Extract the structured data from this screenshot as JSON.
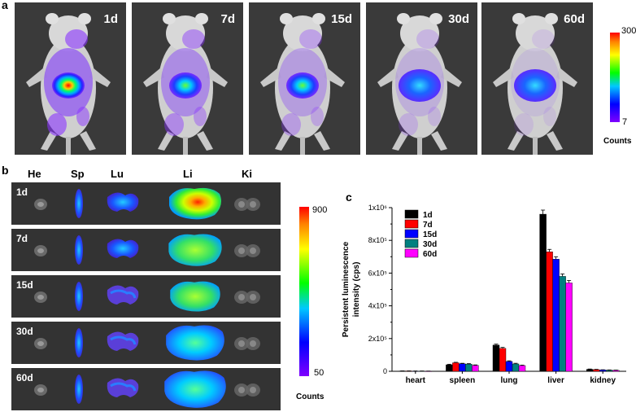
{
  "panel_a": {
    "label": "a",
    "days": [
      "1d",
      "7d",
      "15d",
      "30d",
      "60d"
    ],
    "colorbar": {
      "max": "300",
      "min": "7",
      "unit": "Counts"
    }
  },
  "panel_b": {
    "label": "b",
    "organs": [
      "He",
      "Sp",
      "Lu",
      "Li",
      "Ki"
    ],
    "days": [
      "1d",
      "7d",
      "15d",
      "30d",
      "60d"
    ],
    "colorbar": {
      "max": "900",
      "min": "50",
      "unit": "Counts"
    }
  },
  "panel_c": {
    "label": "c"
  },
  "chart_data": {
    "type": "bar",
    "categories": [
      "heart",
      "spleen",
      "lung",
      "liver",
      "kidney"
    ],
    "ylabel_line1": "Persistent luminescence",
    "ylabel_line2": "intensity (cps)",
    "xlabel": "",
    "ylim": [
      0,
      1000000
    ],
    "yticks": [
      0,
      200000,
      400000,
      600000,
      800000,
      1000000
    ],
    "ytick_labels": [
      "0",
      "2x10⁵",
      "4x10⁵",
      "6x10⁵",
      "8x10⁵",
      "1x10⁶"
    ],
    "legend_position": "top-left",
    "series": [
      {
        "name": "1d",
        "color": "#000000",
        "values": [
          2000,
          40000,
          160000,
          960000,
          12000
        ],
        "errors": [
          500,
          3000,
          6000,
          25000,
          2000
        ]
      },
      {
        "name": "7d",
        "color": "#ff0000",
        "values": [
          2000,
          52000,
          140000,
          730000,
          10000
        ],
        "errors": [
          500,
          3000,
          6000,
          15000,
          2000
        ]
      },
      {
        "name": "15d",
        "color": "#0000ff",
        "values": [
          1500,
          46000,
          60000,
          685000,
          8000
        ],
        "errors": [
          500,
          3000,
          4000,
          15000,
          1500
        ]
      },
      {
        "name": "30d",
        "color": "#008080",
        "values": [
          1500,
          44000,
          45000,
          580000,
          7000
        ],
        "errors": [
          500,
          3000,
          4000,
          15000,
          1500
        ]
      },
      {
        "name": "60d",
        "color": "#ff00ff",
        "values": [
          1000,
          36000,
          35000,
          540000,
          6000
        ],
        "errors": [
          500,
          3000,
          3000,
          15000,
          1500
        ]
      }
    ]
  }
}
